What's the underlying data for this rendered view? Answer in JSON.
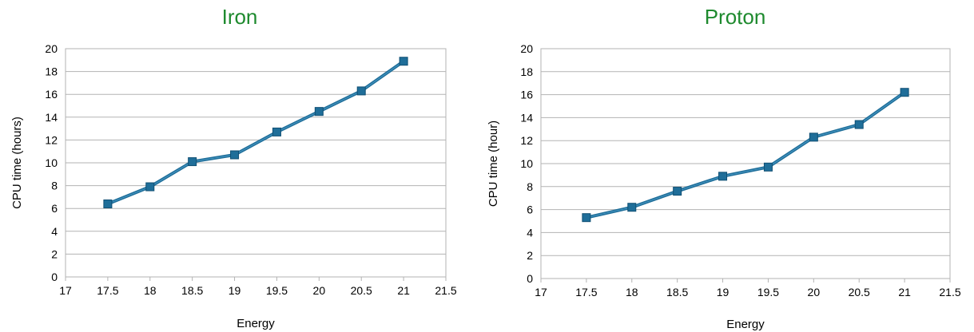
{
  "chart_data": [
    {
      "type": "line",
      "title": "Iron",
      "xlabel": "Energy",
      "ylabel": "CPU time (hours)",
      "xlim": [
        17,
        21.5
      ],
      "ylim": [
        0,
        20
      ],
      "xticks": [
        17,
        17.5,
        18,
        18.5,
        19,
        19.5,
        20,
        20.5,
        21,
        21.5
      ],
      "yticks": [
        0,
        2,
        4,
        6,
        8,
        10,
        12,
        14,
        16,
        18,
        20
      ],
      "grid": true,
      "legend": "none",
      "title_color": "#1e8a2e",
      "series_color": "#1f6e99",
      "series": [
        {
          "x": [
            17.5,
            18,
            18.5,
            19,
            19.5,
            20,
            20.5,
            21
          ],
          "values": [
            6.4,
            7.9,
            10.1,
            10.7,
            12.7,
            14.5,
            16.3,
            18.9
          ]
        }
      ]
    },
    {
      "type": "line",
      "title": "Proton",
      "xlabel": "Energy",
      "ylabel": "CPU time (hour)",
      "xlim": [
        17,
        21.5
      ],
      "ylim": [
        0,
        20
      ],
      "xticks": [
        17,
        17.5,
        18,
        18.5,
        19,
        19.5,
        20,
        20.5,
        21,
        21.5
      ],
      "yticks": [
        0,
        2,
        4,
        6,
        8,
        10,
        12,
        14,
        16,
        18,
        20
      ],
      "grid": true,
      "legend": "none",
      "title_color": "#1e8a2e",
      "series_color": "#1f6e99",
      "series": [
        {
          "x": [
            17.5,
            18,
            18.5,
            19,
            19.5,
            20,
            20.5,
            21
          ],
          "values": [
            5.3,
            6.2,
            7.6,
            8.9,
            9.7,
            12.3,
            13.4,
            16.2
          ]
        }
      ]
    }
  ]
}
